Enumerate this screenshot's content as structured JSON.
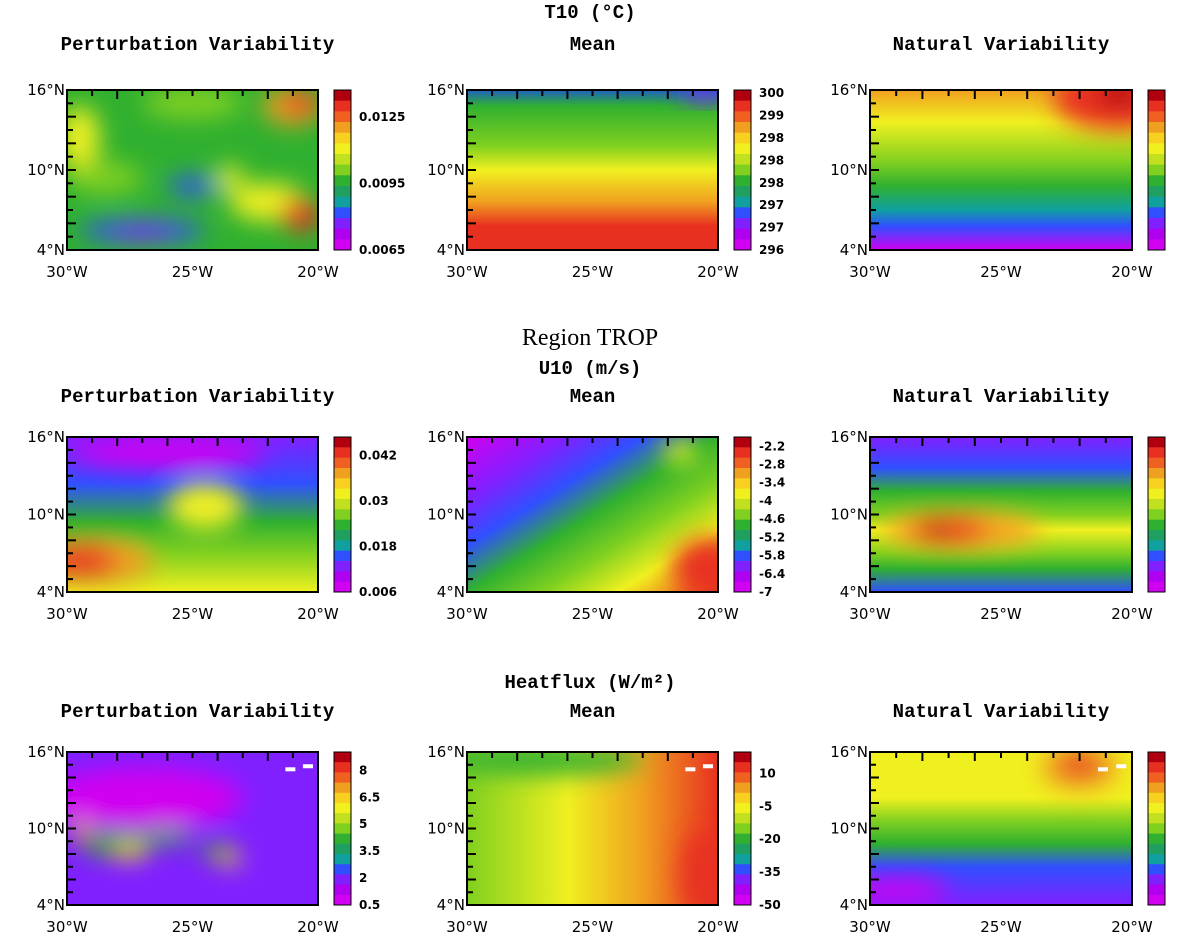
{
  "rows": [
    {
      "title": "T10 (°C)",
      "panels": [
        {
          "subtitle": "Perturbation Variability",
          "colorbar": [
            "0.0125",
            "0.0095",
            "0.0065"
          ]
        },
        {
          "subtitle": "Mean",
          "colorbar": [
            "300",
            "299",
            "298",
            "298",
            "298",
            "297",
            "297",
            "296"
          ]
        },
        {
          "subtitle": "Natural Variability",
          "colorbar": []
        }
      ]
    },
    {
      "title": "U10 (m/s)",
      "panels": [
        {
          "subtitle": "Perturbation Variability",
          "colorbar": [
            "0.042",
            "0.03",
            "0.018",
            "0.006"
          ]
        },
        {
          "subtitle": "Mean",
          "colorbar": [
            "-2.2",
            "-2.8",
            "-3.4",
            "-4",
            "-4.6",
            "-5.2",
            "-5.8",
            "-6.4",
            "-7"
          ]
        },
        {
          "subtitle": "Natural Variability",
          "colorbar": []
        }
      ]
    },
    {
      "title": "Heatflux (W/m²)",
      "panels": [
        {
          "subtitle": "Perturbation Variability",
          "colorbar": [
            "8",
            "6.5",
            "5",
            "3.5",
            "2",
            "0.5"
          ]
        },
        {
          "subtitle": "Mean",
          "colorbar": [
            "10",
            "-5",
            "-20",
            "-35",
            "-50"
          ]
        },
        {
          "subtitle": "Natural Variability",
          "colorbar": []
        }
      ]
    }
  ],
  "region": "Region TROP",
  "axes": {
    "y": [
      "16°N",
      "10°N",
      "4°N"
    ],
    "x": [
      "30°W",
      "25°W",
      "20°W"
    ]
  }
}
